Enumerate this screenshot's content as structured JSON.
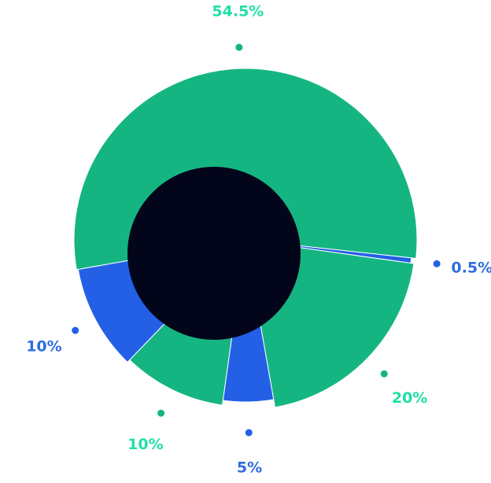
{
  "chart_data": {
    "type": "pie",
    "values": [
      54.5,
      0.5,
      20,
      5,
      10,
      10
    ],
    "value_labels": [
      "54.5%",
      "0.5%",
      "20%",
      "5%",
      "10%",
      "10%"
    ],
    "colors": [
      "#15b582",
      "#2360e6",
      "#15b582",
      "#2360e6",
      "#15b582",
      "#2360e6"
    ]
  }
}
